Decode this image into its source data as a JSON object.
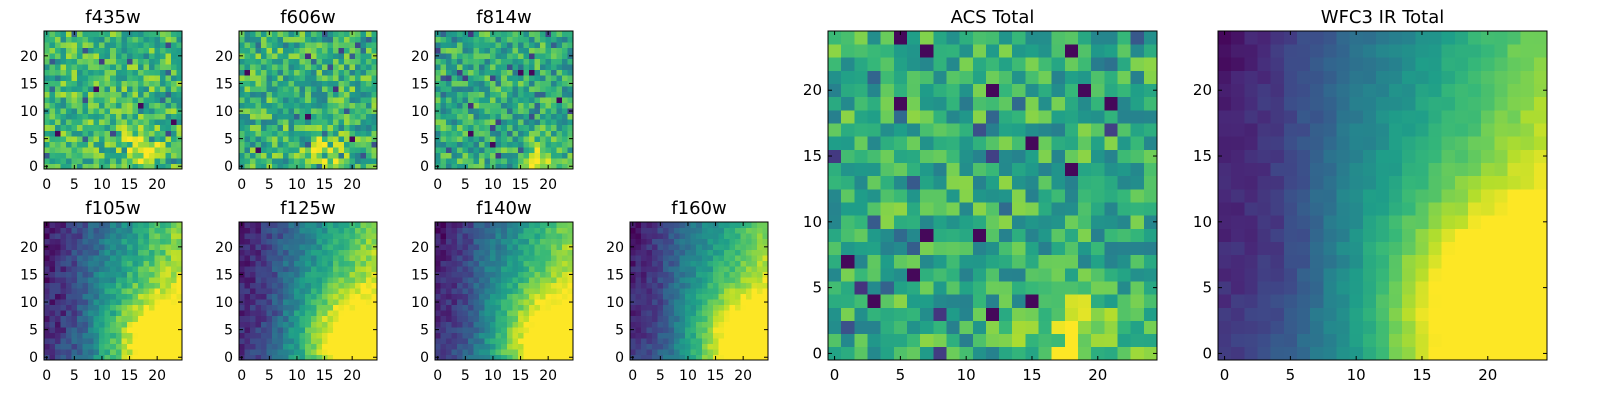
{
  "figure": {
    "colormap": "viridis",
    "colormap_stops": [
      "#440154",
      "#482878",
      "#3e4a89",
      "#31688e",
      "#26828e",
      "#1f9e89",
      "#35b779",
      "#6ece58",
      "#b5de2b",
      "#fde725"
    ]
  },
  "chart_data": [
    {
      "type": "heatmap",
      "title": "f435w",
      "grid": [
        25,
        25
      ],
      "xlim": [
        -0.5,
        24.5
      ],
      "ylim": [
        -0.5,
        24.5
      ],
      "xticks": [
        0,
        5,
        10,
        15,
        20
      ],
      "yticks": [
        0,
        5,
        10,
        15,
        20
      ],
      "xtick_labels": [
        "0",
        "5",
        "10",
        "15",
        "20"
      ],
      "ytick_labels": [
        "0",
        "5",
        "10",
        "15",
        "20"
      ],
      "pattern": "noise",
      "base": 0.68,
      "noise": 0.2,
      "bright_spot": [
        17,
        4
      ],
      "dark_pixels": [
        [
          17,
          11
        ],
        [
          23,
          8
        ],
        [
          9,
          14
        ],
        [
          2,
          6
        ]
      ]
    },
    {
      "type": "heatmap",
      "title": "f606w",
      "grid": [
        25,
        25
      ],
      "xlim": [
        -0.5,
        24.5
      ],
      "ylim": [
        -0.5,
        24.5
      ],
      "xticks": [
        0,
        5,
        10,
        15,
        20
      ],
      "yticks": [
        0,
        5,
        10,
        15,
        20
      ],
      "xtick_labels": [
        "0",
        "5",
        "10",
        "15",
        "20"
      ],
      "ytick_labels": [
        "0",
        "5",
        "10",
        "15",
        "20"
      ],
      "pattern": "noise",
      "base": 0.65,
      "noise": 0.22,
      "bright_spot": [
        15,
        2
      ],
      "dark_pixels": [
        [
          3,
          3
        ],
        [
          12,
          9
        ],
        [
          20,
          5
        ],
        [
          1,
          17
        ]
      ]
    },
    {
      "type": "heatmap",
      "title": "f814w",
      "grid": [
        25,
        25
      ],
      "xlim": [
        -0.5,
        24.5
      ],
      "ylim": [
        -0.5,
        24.5
      ],
      "xticks": [
        0,
        5,
        10,
        15,
        20
      ],
      "yticks": [
        0,
        5,
        10,
        15,
        20
      ],
      "xtick_labels": [
        "0",
        "5",
        "10",
        "15",
        "20"
      ],
      "ytick_labels": [
        "0",
        "5",
        "10",
        "15",
        "20"
      ],
      "pattern": "noise",
      "base": 0.62,
      "noise": 0.2,
      "bright_spot": [
        18,
        1
      ],
      "dark_pixels": [
        [
          15,
          17
        ],
        [
          17,
          17
        ],
        [
          10,
          4
        ],
        [
          6,
          6
        ],
        [
          22,
          12
        ]
      ]
    },
    {
      "type": "heatmap",
      "title": "f105w",
      "grid": [
        25,
        25
      ],
      "xlim": [
        -0.5,
        24.5
      ],
      "ylim": [
        -0.5,
        24.5
      ],
      "xticks": [
        0,
        5,
        10,
        15,
        20
      ],
      "yticks": [
        0,
        5,
        10,
        15,
        20
      ],
      "xtick_labels": [
        "0",
        "5",
        "10",
        "15",
        "20"
      ],
      "ytick_labels": [
        "0",
        "5",
        "10",
        "15",
        "20"
      ],
      "pattern": "gradient",
      "noise": 0.1
    },
    {
      "type": "heatmap",
      "title": "f125w",
      "grid": [
        25,
        25
      ],
      "xlim": [
        -0.5,
        24.5
      ],
      "ylim": [
        -0.5,
        24.5
      ],
      "xticks": [
        0,
        5,
        10,
        15,
        20
      ],
      "yticks": [
        0,
        5,
        10,
        15,
        20
      ],
      "xtick_labels": [
        "0",
        "5",
        "10",
        "15",
        "20"
      ],
      "ytick_labels": [
        "0",
        "5",
        "10",
        "15",
        "20"
      ],
      "pattern": "gradient",
      "noise": 0.09
    },
    {
      "type": "heatmap",
      "title": "f140w",
      "grid": [
        25,
        25
      ],
      "xlim": [
        -0.5,
        24.5
      ],
      "ylim": [
        -0.5,
        24.5
      ],
      "xticks": [
        0,
        5,
        10,
        15,
        20
      ],
      "yticks": [
        0,
        5,
        10,
        15,
        20
      ],
      "xtick_labels": [
        "0",
        "5",
        "10",
        "15",
        "20"
      ],
      "ytick_labels": [
        "0",
        "5",
        "10",
        "15",
        "20"
      ],
      "pattern": "gradient",
      "noise": 0.08
    },
    {
      "type": "heatmap",
      "title": "f160w",
      "grid": [
        25,
        25
      ],
      "xlim": [
        -0.5,
        24.5
      ],
      "ylim": [
        -0.5,
        24.5
      ],
      "xticks": [
        0,
        5,
        10,
        15,
        20
      ],
      "yticks": [
        0,
        5,
        10,
        15,
        20
      ],
      "xtick_labels": [
        "0",
        "5",
        "10",
        "15",
        "20"
      ],
      "ytick_labels": [
        "0",
        "5",
        "10",
        "15",
        "20"
      ],
      "pattern": "gradient",
      "noise": 0.07
    },
    {
      "type": "heatmap",
      "title": "ACS Total",
      "grid": [
        25,
        25
      ],
      "xlim": [
        -0.5,
        24.5
      ],
      "ylim": [
        -0.5,
        24.5
      ],
      "xticks": [
        0,
        5,
        10,
        15,
        20
      ],
      "yticks": [
        0,
        5,
        10,
        15,
        20
      ],
      "xtick_labels": [
        "0",
        "5",
        "10",
        "15",
        "20"
      ],
      "ytick_labels": [
        "0",
        "5",
        "10",
        "15",
        "20"
      ],
      "pattern": "noise",
      "base": 0.63,
      "noise": 0.2,
      "bright_spot": [
        18,
        1
      ],
      "dark_pixels": [
        [
          7,
          23
        ],
        [
          18,
          23
        ],
        [
          12,
          20
        ],
        [
          5,
          19
        ],
        [
          21,
          19
        ],
        [
          18,
          14
        ],
        [
          15,
          16
        ],
        [
          7,
          9
        ],
        [
          11,
          9
        ],
        [
          1,
          7
        ],
        [
          6,
          6
        ],
        [
          3,
          4
        ],
        [
          15,
          4
        ],
        [
          12,
          3
        ],
        [
          5,
          24
        ],
        [
          19,
          20
        ]
      ]
    },
    {
      "type": "heatmap",
      "title": "WFC3 IR Total",
      "grid": [
        25,
        25
      ],
      "xlim": [
        -0.5,
        24.5
      ],
      "ylim": [
        -0.5,
        24.5
      ],
      "xticks": [
        0,
        5,
        10,
        15,
        20
      ],
      "yticks": [
        0,
        5,
        10,
        15,
        20
      ],
      "xtick_labels": [
        "0",
        "5",
        "10",
        "15",
        "20"
      ],
      "ytick_labels": [
        "0",
        "5",
        "10",
        "15",
        "20"
      ],
      "pattern": "gradient",
      "noise": 0.035
    }
  ]
}
